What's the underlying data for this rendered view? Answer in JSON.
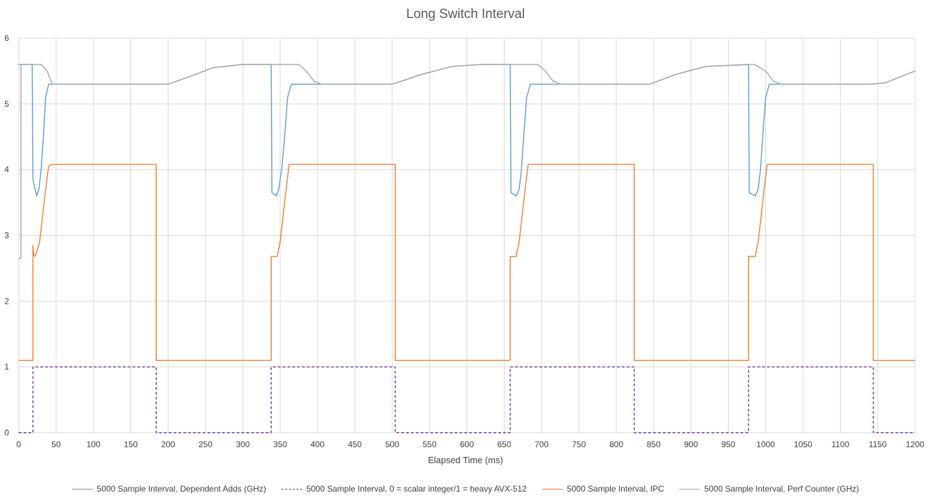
{
  "chart_data": {
    "type": "line",
    "title": "Long Switch Interval",
    "xlabel": "Elapsed Time (ms)",
    "ylabel": "",
    "xlim": [
      0,
      1200
    ],
    "ylim": [
      0,
      6
    ],
    "xticks": [
      0,
      50,
      100,
      150,
      200,
      250,
      300,
      350,
      400,
      450,
      500,
      550,
      600,
      650,
      700,
      750,
      800,
      850,
      900,
      950,
      1000,
      1050,
      1100,
      1150,
      1200
    ],
    "yticks": [
      0,
      1,
      2,
      3,
      4,
      5,
      6
    ],
    "grid": true,
    "legend_position": "bottom",
    "series": [
      {
        "name": "5000 Sample Interval, Dependent Adds (GHz)",
        "color": "#5b9bd5",
        "dash": "solid",
        "x": [
          0,
          18,
          19,
          24,
          27,
          30,
          33,
          36,
          40,
          45,
          200,
          230,
          260,
          300,
          335,
          338,
          339,
          345,
          348,
          352,
          356,
          360,
          365,
          500,
          540,
          580,
          620,
          657,
          658,
          659,
          666,
          670,
          673,
          676,
          680,
          685,
          845,
          880,
          920,
          976,
          977,
          978,
          986,
          990,
          993,
          996,
          1000,
          1005,
          1140,
          1160,
          1200
        ],
        "y": [
          5.6,
          5.6,
          3.85,
          3.6,
          3.7,
          4.0,
          4.5,
          5.1,
          5.3,
          5.3,
          5.3,
          5.42,
          5.55,
          5.6,
          5.6,
          5.6,
          3.65,
          3.6,
          3.7,
          4.0,
          4.5,
          5.1,
          5.3,
          5.3,
          5.45,
          5.57,
          5.6,
          5.6,
          5.6,
          3.65,
          3.6,
          3.7,
          4.0,
          4.5,
          5.1,
          5.3,
          5.3,
          5.45,
          5.57,
          5.6,
          5.6,
          3.65,
          3.6,
          3.7,
          4.0,
          4.5,
          5.1,
          5.3,
          5.3,
          5.32,
          5.5
        ]
      },
      {
        "name": "5000 Sample Interval, 0 = scalar integer/1 = heavy AVX-512",
        "color": "#7030a0",
        "dash": "dashed",
        "x": [
          0,
          19,
          19,
          184,
          184,
          338,
          338,
          504,
          504,
          658,
          658,
          824,
          824,
          977,
          977,
          1144,
          1144,
          1200
        ],
        "y": [
          0,
          0,
          1,
          1,
          0,
          0,
          1,
          1,
          0,
          0,
          1,
          1,
          0,
          0,
          1,
          1,
          0,
          0
        ]
      },
      {
        "name": "5000 Sample Interval, IPC",
        "color": "#ed7d31",
        "dash": "solid",
        "x": [
          0,
          19,
          19,
          20,
          22,
          28,
          32,
          36,
          40,
          44,
          184,
          184,
          338,
          338,
          346,
          350,
          354,
          358,
          362,
          504,
          504,
          658,
          658,
          666,
          670,
          674,
          678,
          682,
          824,
          824,
          977,
          977,
          986,
          990,
          994,
          998,
          1002,
          1144,
          1144,
          1200
        ],
        "y": [
          1.1,
          1.1,
          2.85,
          2.7,
          2.68,
          2.9,
          3.3,
          3.7,
          4.05,
          4.08,
          4.08,
          1.1,
          1.1,
          2.68,
          2.68,
          2.9,
          3.3,
          3.7,
          4.08,
          4.08,
          1.1,
          1.1,
          2.68,
          2.68,
          2.9,
          3.3,
          3.7,
          4.08,
          4.08,
          1.1,
          1.1,
          2.68,
          2.68,
          2.9,
          3.3,
          3.7,
          4.08,
          4.08,
          1.1,
          1.1
        ]
      },
      {
        "name": "5000 Sample Interval, Perf Counter (GHz)",
        "color": "#a5a5a5",
        "dash": "solid",
        "x": [
          0,
          3,
          3,
          6,
          30,
          38,
          45,
          200,
          230,
          260,
          300,
          375,
          385,
          395,
          405,
          500,
          540,
          580,
          620,
          695,
          705,
          715,
          725,
          845,
          880,
          920,
          985,
          1000,
          1010,
          1020,
          1140,
          1160,
          1200
        ],
        "y": [
          2.65,
          2.65,
          5.6,
          5.6,
          5.6,
          5.5,
          5.3,
          5.3,
          5.42,
          5.55,
          5.6,
          5.6,
          5.5,
          5.35,
          5.3,
          5.3,
          5.45,
          5.57,
          5.6,
          5.6,
          5.5,
          5.35,
          5.3,
          5.3,
          5.45,
          5.57,
          5.6,
          5.5,
          5.35,
          5.3,
          5.3,
          5.32,
          5.5
        ]
      }
    ]
  }
}
